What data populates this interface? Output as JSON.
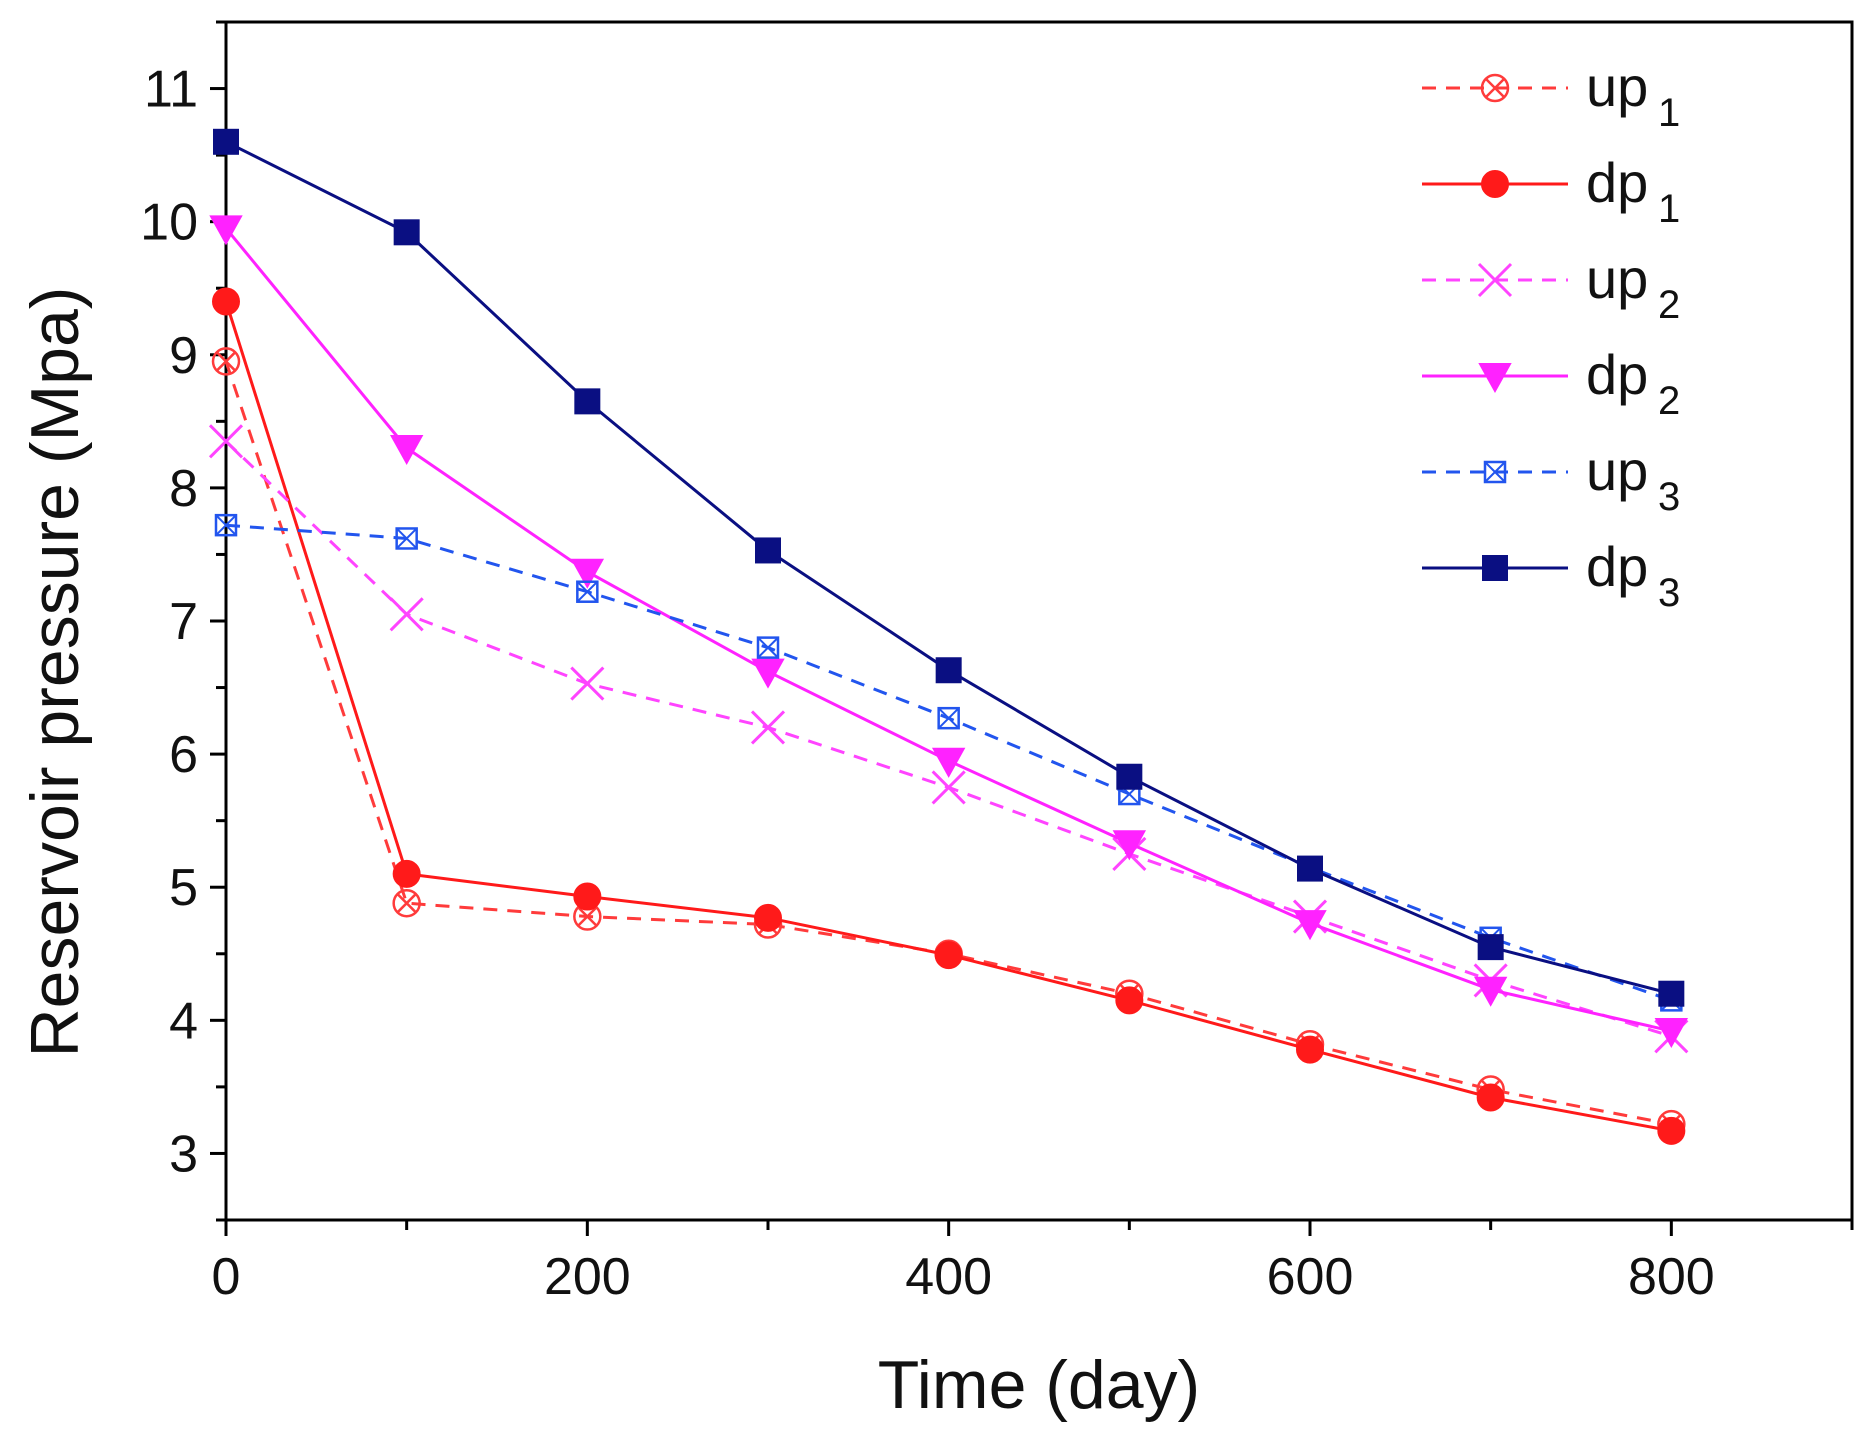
{
  "chart_data": {
    "type": "line",
    "title": "",
    "xlabel": "Time (day)",
    "ylabel": "Reservoir pressure (Mpa)",
    "xlim": [
      0,
      900
    ],
    "ylim": [
      2.5,
      11.5
    ],
    "xticks": [
      0,
      200,
      400,
      600,
      800
    ],
    "yticks": [
      3,
      4,
      5,
      6,
      7,
      8,
      9,
      10,
      11
    ],
    "x": [
      0,
      100,
      200,
      300,
      400,
      500,
      600,
      700,
      800
    ],
    "legend_position": "top-right",
    "series": [
      {
        "name": "up",
        "subscript": "1",
        "color": "#ff3b3b",
        "dash": true,
        "marker": "circle-x",
        "values": [
          8.95,
          4.88,
          4.78,
          4.72,
          4.5,
          4.2,
          3.82,
          3.48,
          3.22
        ]
      },
      {
        "name": "dp",
        "subscript": "1",
        "color": "#ff1a1a",
        "dash": false,
        "marker": "circle",
        "values": [
          9.4,
          5.1,
          4.93,
          4.77,
          4.49,
          4.15,
          3.78,
          3.42,
          3.17
        ]
      },
      {
        "name": "up",
        "subscript": "2",
        "color": "#ff44ff",
        "dash": true,
        "marker": "x",
        "values": [
          8.35,
          7.05,
          6.53,
          6.2,
          5.75,
          5.25,
          4.78,
          4.3,
          3.88
        ]
      },
      {
        "name": "dp",
        "subscript": "2",
        "color": "#ff22ff",
        "dash": false,
        "marker": "triangle-down",
        "values": [
          9.95,
          8.3,
          7.37,
          6.62,
          5.95,
          5.33,
          4.73,
          4.23,
          3.92
        ]
      },
      {
        "name": "up",
        "subscript": "3",
        "color": "#2255ee",
        "dash": true,
        "marker": "square-x",
        "values": [
          7.72,
          7.62,
          7.22,
          6.8,
          6.27,
          5.7,
          5.15,
          4.62,
          4.15
        ]
      },
      {
        "name": "dp",
        "subscript": "3",
        "color": "#0a0f82",
        "dash": false,
        "marker": "square",
        "values": [
          10.6,
          9.92,
          8.65,
          7.53,
          6.63,
          5.83,
          5.14,
          4.55,
          4.2
        ]
      }
    ]
  }
}
